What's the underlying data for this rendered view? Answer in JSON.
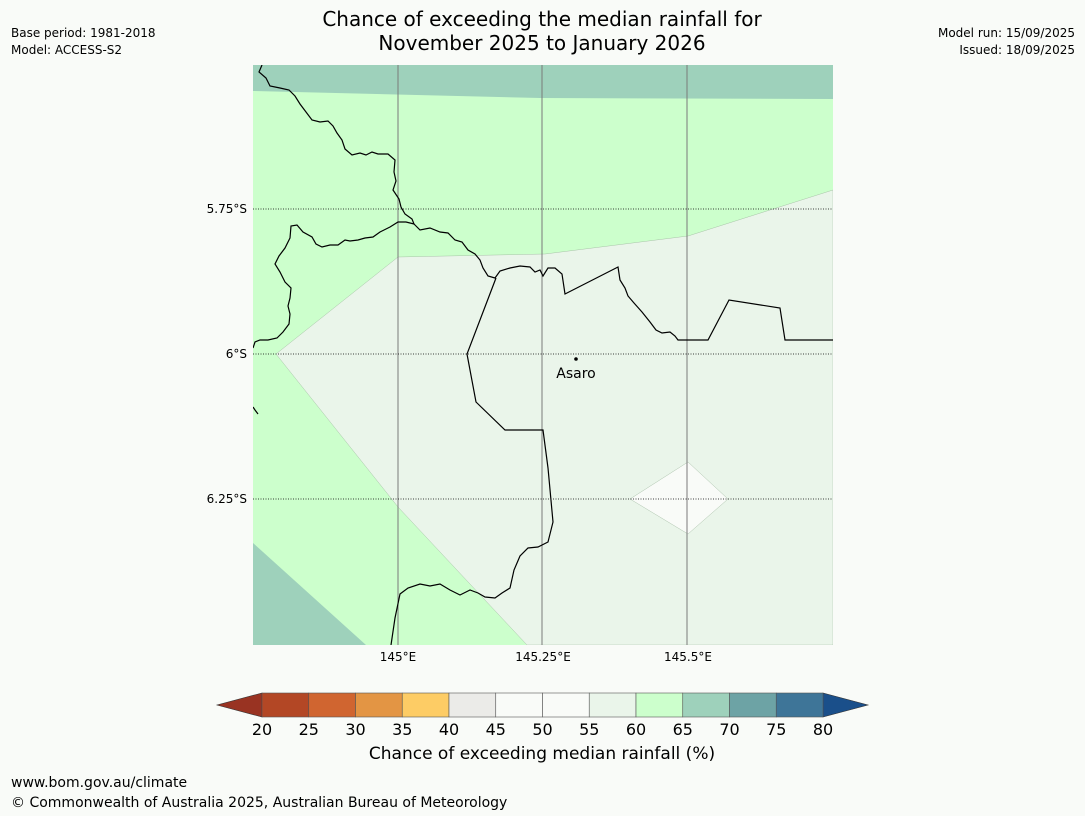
{
  "title": {
    "line1": "Chance of exceeding the median rainfall for",
    "line2": "November 2025 to January 2026"
  },
  "meta_left": {
    "base_period": "Base period: 1981-2018",
    "model": "Model: ACCESS-S2"
  },
  "meta_right": {
    "model_run": "Model run: 15/09/2025",
    "issued": "Issued: 18/09/2025"
  },
  "map": {
    "lat_labels": [
      "5.75°S",
      "6°S",
      "6.25°S"
    ],
    "lon_labels": [
      "145°E",
      "145.25°E",
      "145.5°E"
    ],
    "places": [
      {
        "name": "Asaro"
      }
    ],
    "zone_colors": {
      "c50_55": "#f9fbf8",
      "c55_60": "#eaf5ea",
      "c60_65": "#ccffcc",
      "c65_70": "#9ed1bb"
    }
  },
  "colorbar": {
    "label": "Chance of exceeding median rainfall (%)",
    "ticks": [
      "20",
      "25",
      "30",
      "35",
      "40",
      "45",
      "50",
      "55",
      "60",
      "65",
      "70",
      "75",
      "80"
    ],
    "under_color": "#993322",
    "over_color": "#1a4f8a",
    "colors": [
      "#b34725",
      "#d06530",
      "#e39544",
      "#fdcc65",
      "#ebebe8",
      "#f9fbf8",
      "#f9fbf8",
      "#eaf5ea",
      "#ccffcc",
      "#9ed1bb",
      "#6da3a5",
      "#3e7598"
    ]
  },
  "footer": {
    "url": "www.bom.gov.au/climate",
    "copyright": "© Commonwealth of Australia 2025, Australian Bureau of Meteorology"
  }
}
